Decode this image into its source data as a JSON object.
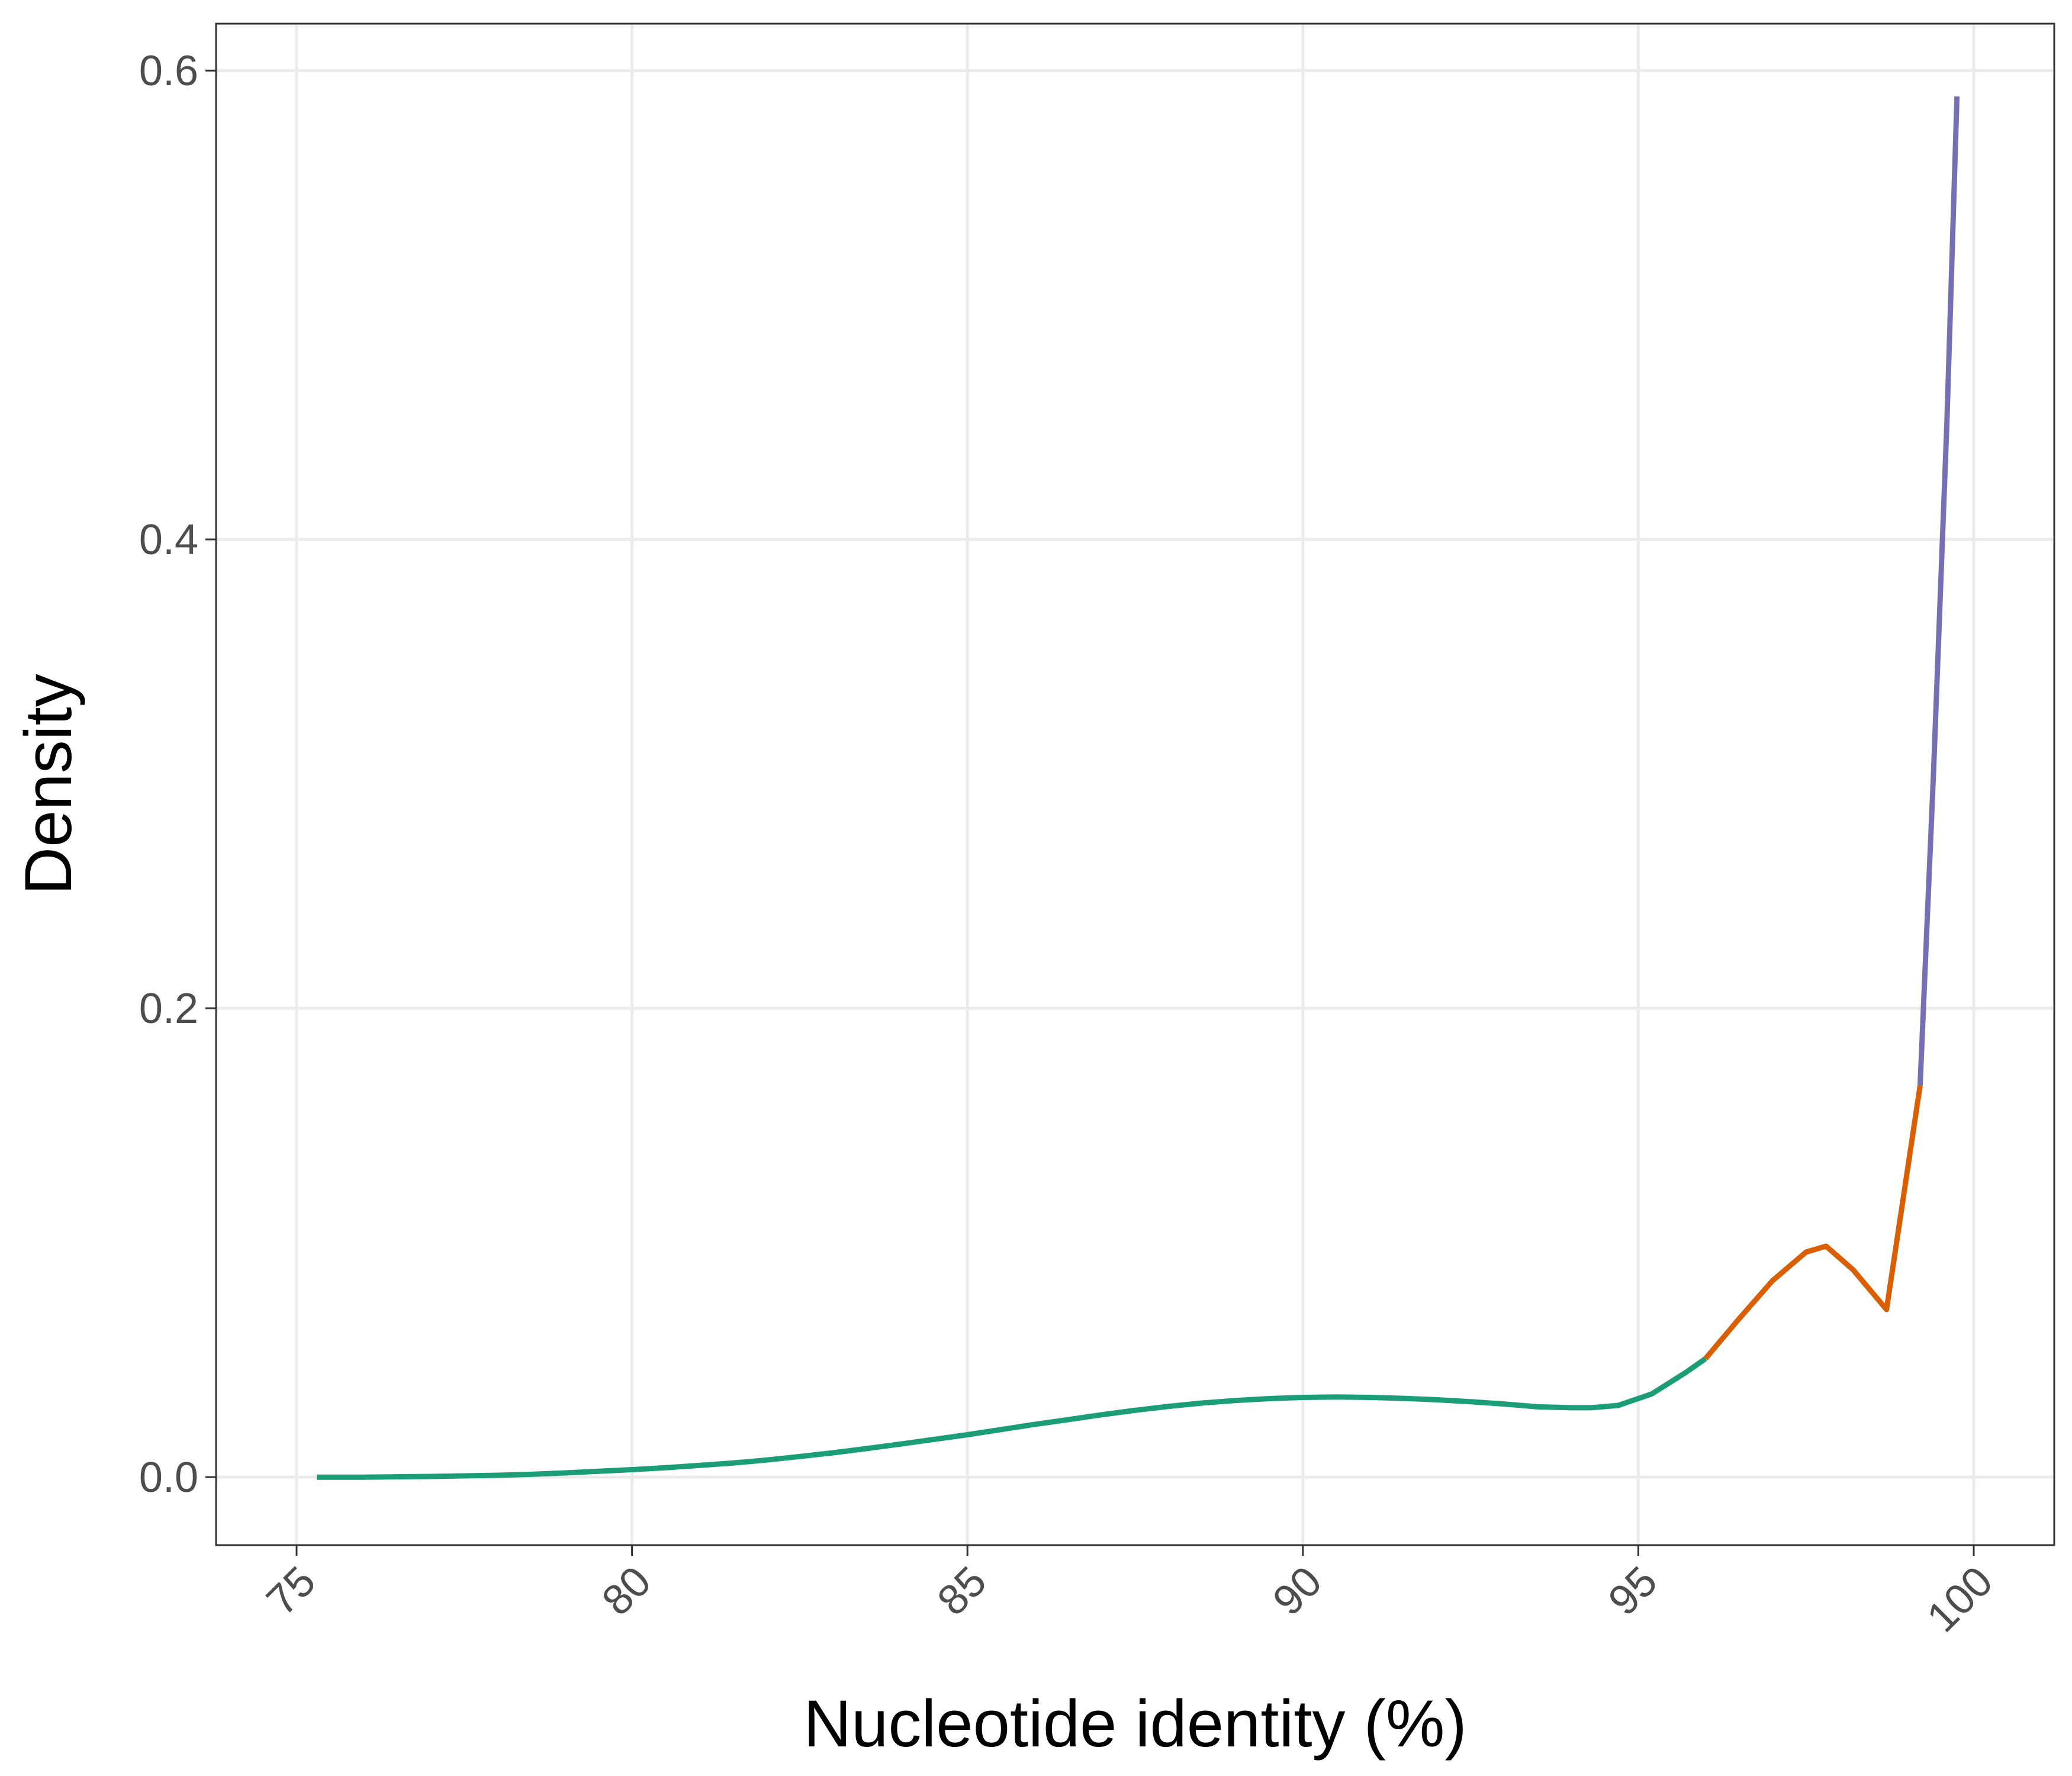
{
  "chart_data": {
    "type": "line",
    "title": "",
    "xlabel": "Nucleotide identity (%)",
    "ylabel": "Density",
    "xlim": [
      73.8,
      101.2
    ],
    "ylim": [
      -0.029,
      0.62
    ],
    "x_ticks": [
      75,
      80,
      85,
      90,
      95,
      100
    ],
    "x_tick_labels": [
      "75",
      "80",
      "85",
      "90",
      "95",
      "100"
    ],
    "y_ticks": [
      0.0,
      0.2,
      0.4,
      0.6
    ],
    "y_tick_labels": [
      "0.0",
      "0.2",
      "0.4",
      "0.6"
    ],
    "grid": true,
    "legend": "none",
    "series": [
      {
        "color": "#1b9e77",
        "x": [
          75.3,
          76,
          77,
          78,
          78.5,
          79,
          79.5,
          80,
          80.5,
          81,
          81.5,
          82,
          82.5,
          83,
          83.5,
          84,
          84.5,
          85,
          85.5,
          86,
          86.5,
          87,
          87.5,
          88,
          88.5,
          89,
          89.5,
          90,
          90.5,
          91,
          91.5,
          92,
          92.5,
          93,
          93.5,
          94,
          94.3,
          94.7,
          95.2,
          95.7,
          96
        ],
        "y": [
          0.0,
          0.0,
          0.0003,
          0.0008,
          0.0012,
          0.0018,
          0.0025,
          0.0032,
          0.004,
          0.005,
          0.006,
          0.0073,
          0.0088,
          0.0104,
          0.0122,
          0.0141,
          0.0161,
          0.0181,
          0.0203,
          0.0225,
          0.0245,
          0.0266,
          0.0285,
          0.0302,
          0.0316,
          0.0327,
          0.0335,
          0.034,
          0.0342,
          0.034,
          0.0336,
          0.033,
          0.0322,
          0.0312,
          0.03,
          0.0296,
          0.0296,
          0.0306,
          0.0355,
          0.0445,
          0.0505
        ]
      },
      {
        "color": "#d95f02",
        "x": [
          96,
          96.5,
          97,
          97.5,
          97.8,
          98.2,
          98.7,
          99.2
        ],
        "y": [
          0.0505,
          0.0675,
          0.0838,
          0.096,
          0.0985,
          0.0885,
          0.0715,
          0.167
        ]
      },
      {
        "color": "#7570b3",
        "x": [
          99.2,
          99.4,
          99.6,
          99.75
        ],
        "y": [
          0.167,
          0.3,
          0.45,
          0.589
        ]
      }
    ]
  }
}
